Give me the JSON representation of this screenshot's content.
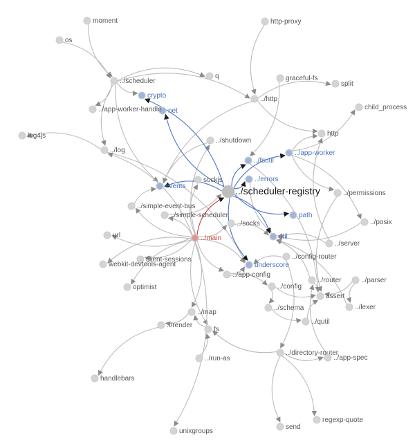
{
  "graph": {
    "focus": "scheduler-registry",
    "colors": {
      "node_default": "#d4d4d4",
      "node_focus": "#bdbdbd",
      "node_dependency": "#9fb5de",
      "node_dependent": "#e0968f",
      "label_default": "#555555",
      "label_dependency": "#4a6fbf",
      "label_dependent": "#d0463a",
      "label_focus": "#111111",
      "edge_default": "#bbbbbb",
      "edge_dependency": "#4a74c9",
      "edge_dependent": "#cc3b33",
      "arrow_default": "#8c8c8c"
    },
    "nodes": [
      {
        "id": "moment",
        "label": "moment",
        "kind": "default"
      },
      {
        "id": "os",
        "label": "os",
        "kind": "default"
      },
      {
        "id": "http-proxy",
        "label": "http-proxy",
        "kind": "default"
      },
      {
        "id": "q",
        "label": "q",
        "kind": "default"
      },
      {
        "id": "graceful-fs",
        "label": "graceful-fs",
        "kind": "default"
      },
      {
        "id": "scheduler",
        "label": "../scheduler",
        "kind": "default"
      },
      {
        "id": "split",
        "label": "split",
        "kind": "default"
      },
      {
        "id": "crypto",
        "label": "crypto",
        "kind": "dependency"
      },
      {
        "id": "http-rel",
        "label": "../http",
        "kind": "default"
      },
      {
        "id": "net",
        "label": "net",
        "kind": "dependency"
      },
      {
        "id": "app-worker-handle",
        "label": "../app-worker-handle",
        "kind": "default"
      },
      {
        "id": "child_process",
        "label": "child_process",
        "kind": "default"
      },
      {
        "id": "http",
        "label": "http",
        "kind": "default"
      },
      {
        "id": "log4js",
        "label": "log4js",
        "kind": "default"
      },
      {
        "id": "shutdown",
        "label": "../shutdown",
        "kind": "default"
      },
      {
        "id": "log",
        "label": "../log",
        "kind": "default"
      },
      {
        "id": "app-worker",
        "label": "../app-worker",
        "kind": "dependency"
      },
      {
        "id": "fsutil",
        "label": "../fsutil",
        "kind": "dependency"
      },
      {
        "id": "errors",
        "label": "../errors",
        "kind": "dependency"
      },
      {
        "id": "events",
        "label": "events",
        "kind": "dependency"
      },
      {
        "id": "sockjs",
        "label": "sockjs",
        "kind": "default"
      },
      {
        "id": "scheduler-registry",
        "label": "../scheduler-registry",
        "kind": "focus"
      },
      {
        "id": "permissions",
        "label": "../permissions",
        "kind": "default"
      },
      {
        "id": "simple-event-bus",
        "label": "../simple-event-bus",
        "kind": "default"
      },
      {
        "id": "simple-scheduler",
        "label": "../simple-scheduler",
        "kind": "default"
      },
      {
        "id": "path",
        "label": "path",
        "kind": "dependency"
      },
      {
        "id": "posix",
        "label": "../posix",
        "kind": "default"
      },
      {
        "id": "socks",
        "label": "../socks",
        "kind": "default"
      },
      {
        "id": "url",
        "label": "url",
        "kind": "default"
      },
      {
        "id": "main",
        "label": "../main",
        "kind": "dependent"
      },
      {
        "id": "util",
        "label": "util",
        "kind": "dependency"
      },
      {
        "id": "server",
        "label": "../server",
        "kind": "default"
      },
      {
        "id": "client-sessions",
        "label": "client-sessions",
        "kind": "default"
      },
      {
        "id": "config-router",
        "label": "../config-router",
        "kind": "default"
      },
      {
        "id": "webkit-devtools-agent",
        "label": "webkit-devtools-agent",
        "kind": "default"
      },
      {
        "id": "underscore",
        "label": "underscore",
        "kind": "dependency"
      },
      {
        "id": "app-config",
        "label": "../app-config",
        "kind": "default"
      },
      {
        "id": "router",
        "label": "../router",
        "kind": "default"
      },
      {
        "id": "parser",
        "label": "../parser",
        "kind": "default"
      },
      {
        "id": "optimist",
        "label": "optimist",
        "kind": "default"
      },
      {
        "id": "config",
        "label": "../config",
        "kind": "default"
      },
      {
        "id": "assert",
        "label": "assert",
        "kind": "default"
      },
      {
        "id": "lexer",
        "label": "../lexer",
        "kind": "default"
      },
      {
        "id": "map",
        "label": "../map",
        "kind": "default"
      },
      {
        "id": "schema",
        "label": "../schema",
        "kind": "default"
      },
      {
        "id": "render",
        "label": "../render",
        "kind": "default"
      },
      {
        "id": "fs",
        "label": "fs",
        "kind": "default"
      },
      {
        "id": "qutil",
        "label": "../qutil",
        "kind": "default"
      },
      {
        "id": "directory-router",
        "label": "../directory-router",
        "kind": "default"
      },
      {
        "id": "app-spec",
        "label": "../app-spec",
        "kind": "default"
      },
      {
        "id": "run-as",
        "label": "../run-as",
        "kind": "default"
      },
      {
        "id": "handlebars",
        "label": "handlebars",
        "kind": "default"
      },
      {
        "id": "unixgroups",
        "label": "unixgroups",
        "kind": "default"
      },
      {
        "id": "send",
        "label": "send",
        "kind": "default"
      },
      {
        "id": "regexp-quote",
        "label": "regexp-quote",
        "kind": "default"
      }
    ],
    "edges": [
      {
        "from": "scheduler-registry",
        "to": "crypto",
        "kind": "dependency"
      },
      {
        "from": "scheduler-registry",
        "to": "net",
        "kind": "dependency"
      },
      {
        "from": "scheduler-registry",
        "to": "events",
        "kind": "dependency"
      },
      {
        "from": "scheduler-registry",
        "to": "fsutil",
        "kind": "dependency"
      },
      {
        "from": "scheduler-registry",
        "to": "errors",
        "kind": "dependency"
      },
      {
        "from": "scheduler-registry",
        "to": "app-worker",
        "kind": "dependency"
      },
      {
        "from": "scheduler-registry",
        "to": "path",
        "kind": "dependency"
      },
      {
        "from": "scheduler-registry",
        "to": "util",
        "kind": "dependency"
      },
      {
        "from": "scheduler-registry",
        "to": "underscore",
        "kind": "dependency"
      },
      {
        "from": "main",
        "to": "scheduler-registry",
        "kind": "dependent"
      },
      {
        "from": "moment",
        "to": "scheduler",
        "kind": "default"
      },
      {
        "from": "os",
        "to": "scheduler",
        "kind": "default"
      },
      {
        "from": "scheduler",
        "to": "crypto",
        "kind": "default"
      },
      {
        "from": "scheduler",
        "to": "q",
        "kind": "default"
      },
      {
        "from": "scheduler",
        "to": "log",
        "kind": "default"
      },
      {
        "from": "scheduler",
        "to": "app-worker-handle",
        "kind": "default"
      },
      {
        "from": "scheduler",
        "to": "events",
        "kind": "default"
      },
      {
        "from": "scheduler",
        "to": "http-rel",
        "kind": "default"
      },
      {
        "from": "http-proxy",
        "to": "http-rel",
        "kind": "default"
      },
      {
        "from": "graceful-fs",
        "to": "fsutil",
        "kind": "default"
      },
      {
        "from": "http-rel",
        "to": "http",
        "kind": "default"
      },
      {
        "from": "http-rel",
        "to": "split",
        "kind": "default"
      },
      {
        "from": "app-worker",
        "to": "child_process",
        "kind": "default"
      },
      {
        "from": "app-worker",
        "to": "http",
        "kind": "default"
      },
      {
        "from": "app-worker",
        "to": "permissions",
        "kind": "default"
      },
      {
        "from": "app-worker",
        "to": "posix",
        "kind": "default"
      },
      {
        "from": "log",
        "to": "log4js",
        "kind": "default"
      },
      {
        "from": "log",
        "to": "underscore",
        "kind": "default"
      },
      {
        "from": "shutdown",
        "to": "events",
        "kind": "default"
      },
      {
        "from": "fsutil",
        "to": "assert",
        "kind": "default"
      },
      {
        "from": "errors",
        "to": "util",
        "kind": "default"
      },
      {
        "from": "main",
        "to": "url",
        "kind": "default"
      },
      {
        "from": "main",
        "to": "optimist",
        "kind": "default"
      },
      {
        "from": "main",
        "to": "client-sessions",
        "kind": "default"
      },
      {
        "from": "main",
        "to": "webkit-devtools-agent",
        "kind": "default"
      },
      {
        "from": "main",
        "to": "simple-event-bus",
        "kind": "default"
      },
      {
        "from": "main",
        "to": "simple-scheduler",
        "kind": "default"
      },
      {
        "from": "main",
        "to": "sockjs",
        "kind": "default"
      },
      {
        "from": "main",
        "to": "socks",
        "kind": "default"
      },
      {
        "from": "main",
        "to": "map",
        "kind": "default"
      },
      {
        "from": "main",
        "to": "fs",
        "kind": "default"
      },
      {
        "from": "main",
        "to": "unixgroups",
        "kind": "default"
      },
      {
        "from": "main",
        "to": "app-config",
        "kind": "default"
      },
      {
        "from": "main",
        "to": "shutdown",
        "kind": "default"
      },
      {
        "from": "main",
        "to": "log",
        "kind": "default"
      },
      {
        "from": "simple-event-bus",
        "to": "events",
        "kind": "default"
      },
      {
        "from": "simple-scheduler",
        "to": "scheduler-registry",
        "kind": "default"
      },
      {
        "from": "socks",
        "to": "util",
        "kind": "default"
      },
      {
        "from": "server",
        "to": "util",
        "kind": "default"
      },
      {
        "from": "server",
        "to": "http",
        "kind": "default"
      },
      {
        "from": "config-router",
        "to": "underscore",
        "kind": "default"
      },
      {
        "from": "app-config",
        "to": "config",
        "kind": "default"
      },
      {
        "from": "app-config",
        "to": "underscore",
        "kind": "default"
      },
      {
        "from": "router",
        "to": "assert",
        "kind": "default"
      },
      {
        "from": "parser",
        "to": "lexer",
        "kind": "default"
      },
      {
        "from": "parser",
        "to": "assert",
        "kind": "default"
      },
      {
        "from": "config",
        "to": "assert",
        "kind": "default"
      },
      {
        "from": "config",
        "to": "schema",
        "kind": "default"
      },
      {
        "from": "schema",
        "to": "qutil",
        "kind": "default"
      },
      {
        "from": "map",
        "to": "render",
        "kind": "default"
      },
      {
        "from": "render",
        "to": "handlebars",
        "kind": "default"
      },
      {
        "from": "fs",
        "to": "map",
        "kind": "default"
      },
      {
        "from": "directory-router",
        "to": "send",
        "kind": "default"
      },
      {
        "from": "directory-router",
        "to": "regexp-quote",
        "kind": "default"
      },
      {
        "from": "directory-router",
        "to": "app-spec",
        "kind": "default"
      },
      {
        "from": "directory-router",
        "to": "fs",
        "kind": "default"
      },
      {
        "from": "run-as",
        "to": "fs",
        "kind": "default"
      },
      {
        "from": "posix",
        "to": "util",
        "kind": "default"
      },
      {
        "from": "permissions",
        "to": "assert",
        "kind": "default"
      },
      {
        "from": "qutil",
        "to": "assert",
        "kind": "default"
      },
      {
        "from": "lexer",
        "to": "util",
        "kind": "default"
      },
      {
        "from": "app-spec",
        "to": "router",
        "kind": "default"
      },
      {
        "from": "http-rel",
        "to": "events",
        "kind": "default"
      },
      {
        "from": "main",
        "to": "underscore",
        "kind": "default"
      },
      {
        "from": "router",
        "to": "util",
        "kind": "default"
      },
      {
        "from": "config-router",
        "to": "directory-router",
        "kind": "default"
      }
    ]
  }
}
